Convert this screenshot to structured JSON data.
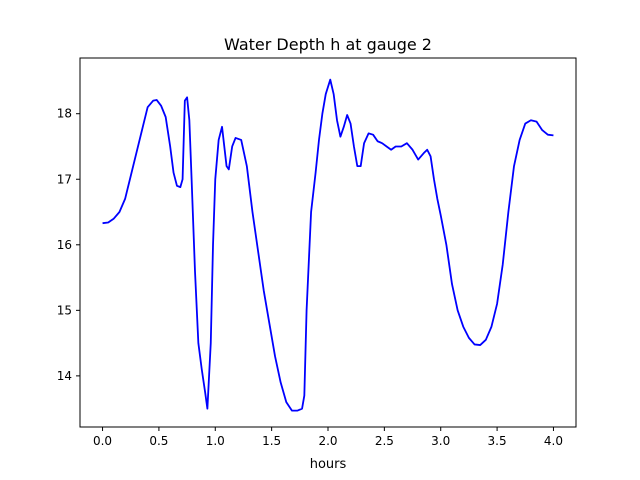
{
  "chart_data": {
    "type": "line",
    "title": "Water Depth h at gauge 2",
    "xlabel": "hours",
    "ylabel": "",
    "xlim": [
      -0.2,
      4.2
    ],
    "ylim": [
      13.22,
      18.85
    ],
    "xticks": [
      0.0,
      0.5,
      1.0,
      1.5,
      2.0,
      2.5,
      3.0,
      3.5,
      4.0
    ],
    "xtick_labels": [
      "0.0",
      "0.5",
      "1.0",
      "1.5",
      "2.0",
      "2.5",
      "3.0",
      "3.5",
      "4.0"
    ],
    "yticks": [
      14,
      15,
      16,
      17,
      18
    ],
    "ytick_labels": [
      "14",
      "15",
      "16",
      "17",
      "18"
    ],
    "grid": false,
    "series": [
      {
        "color": "#0000ff",
        "points": [
          [
            0.0,
            16.33
          ],
          [
            0.05,
            16.34
          ],
          [
            0.1,
            16.4
          ],
          [
            0.15,
            16.5
          ],
          [
            0.2,
            16.7
          ],
          [
            0.25,
            17.05
          ],
          [
            0.3,
            17.4
          ],
          [
            0.35,
            17.75
          ],
          [
            0.4,
            18.1
          ],
          [
            0.45,
            18.2
          ],
          [
            0.48,
            18.21
          ],
          [
            0.52,
            18.12
          ],
          [
            0.56,
            17.95
          ],
          [
            0.6,
            17.5
          ],
          [
            0.63,
            17.1
          ],
          [
            0.66,
            16.9
          ],
          [
            0.69,
            16.88
          ],
          [
            0.71,
            17.0
          ],
          [
            0.72,
            17.6
          ],
          [
            0.73,
            18.2
          ],
          [
            0.75,
            18.25
          ],
          [
            0.77,
            17.9
          ],
          [
            0.79,
            17.0
          ],
          [
            0.82,
            15.6
          ],
          [
            0.85,
            14.5
          ],
          [
            0.88,
            14.1
          ],
          [
            0.91,
            13.75
          ],
          [
            0.93,
            13.5
          ],
          [
            0.96,
            14.5
          ],
          [
            0.98,
            16.0
          ],
          [
            1.0,
            17.0
          ],
          [
            1.03,
            17.6
          ],
          [
            1.06,
            17.8
          ],
          [
            1.08,
            17.5
          ],
          [
            1.1,
            17.2
          ],
          [
            1.12,
            17.15
          ],
          [
            1.15,
            17.5
          ],
          [
            1.18,
            17.63
          ],
          [
            1.23,
            17.6
          ],
          [
            1.28,
            17.2
          ],
          [
            1.33,
            16.5
          ],
          [
            1.38,
            15.9
          ],
          [
            1.43,
            15.3
          ],
          [
            1.48,
            14.8
          ],
          [
            1.53,
            14.3
          ],
          [
            1.58,
            13.9
          ],
          [
            1.63,
            13.6
          ],
          [
            1.68,
            13.47
          ],
          [
            1.73,
            13.47
          ],
          [
            1.77,
            13.5
          ],
          [
            1.79,
            13.7
          ],
          [
            1.81,
            15.0
          ],
          [
            1.85,
            16.5
          ],
          [
            1.89,
            17.1
          ],
          [
            1.92,
            17.6
          ],
          [
            1.95,
            18.0
          ],
          [
            1.98,
            18.3
          ],
          [
            2.02,
            18.52
          ],
          [
            2.05,
            18.3
          ],
          [
            2.08,
            17.9
          ],
          [
            2.11,
            17.65
          ],
          [
            2.14,
            17.8
          ],
          [
            2.17,
            17.98
          ],
          [
            2.2,
            17.85
          ],
          [
            2.23,
            17.5
          ],
          [
            2.26,
            17.2
          ],
          [
            2.29,
            17.2
          ],
          [
            2.32,
            17.55
          ],
          [
            2.36,
            17.7
          ],
          [
            2.4,
            17.68
          ],
          [
            2.44,
            17.58
          ],
          [
            2.48,
            17.55
          ],
          [
            2.52,
            17.5
          ],
          [
            2.56,
            17.45
          ],
          [
            2.6,
            17.5
          ],
          [
            2.65,
            17.5
          ],
          [
            2.7,
            17.55
          ],
          [
            2.75,
            17.45
          ],
          [
            2.8,
            17.3
          ],
          [
            2.85,
            17.4
          ],
          [
            2.88,
            17.45
          ],
          [
            2.91,
            17.35
          ],
          [
            2.94,
            17.0
          ],
          [
            2.97,
            16.7
          ],
          [
            3.0,
            16.45
          ],
          [
            3.05,
            16.0
          ],
          [
            3.1,
            15.4
          ],
          [
            3.15,
            15.0
          ],
          [
            3.2,
            14.75
          ],
          [
            3.25,
            14.58
          ],
          [
            3.3,
            14.48
          ],
          [
            3.35,
            14.47
          ],
          [
            3.4,
            14.55
          ],
          [
            3.45,
            14.75
          ],
          [
            3.5,
            15.1
          ],
          [
            3.55,
            15.7
          ],
          [
            3.6,
            16.5
          ],
          [
            3.65,
            17.2
          ],
          [
            3.7,
            17.6
          ],
          [
            3.75,
            17.85
          ],
          [
            3.8,
            17.9
          ],
          [
            3.85,
            17.88
          ],
          [
            3.9,
            17.75
          ],
          [
            3.95,
            17.68
          ],
          [
            4.0,
            17.67
          ]
        ]
      }
    ]
  }
}
